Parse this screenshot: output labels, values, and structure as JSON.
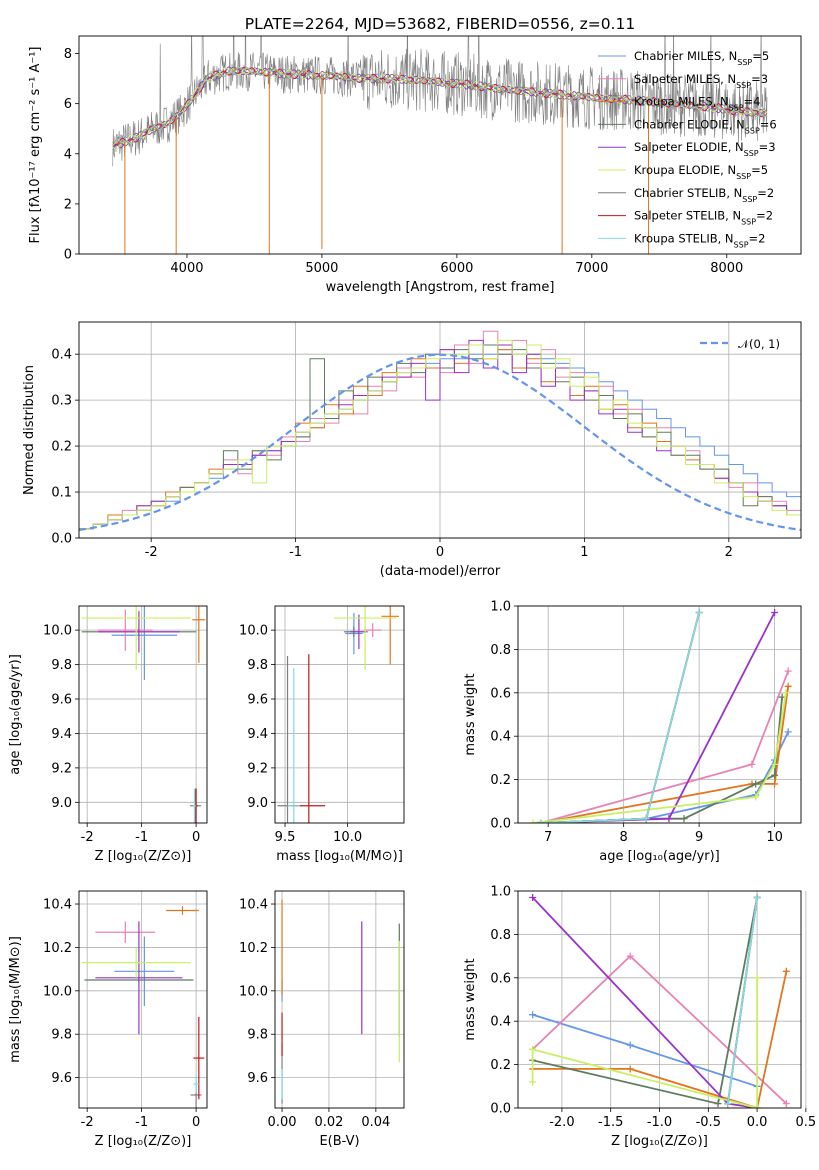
{
  "title": "PLATE=2264, MJD=53682, FIBERID=0556, z=0.11",
  "series_styles": [
    {
      "name": "Chabrier MILES",
      "n": "5",
      "color": "#6495ed"
    },
    {
      "name": "Salpeter MILES",
      "n": "3",
      "color": "#e882b4"
    },
    {
      "name": "Kroupa MILES",
      "n": "4",
      "color": "#e2751e"
    },
    {
      "name": "Chabrier ELODIE",
      "n": "6",
      "color": "#5d7c5d"
    },
    {
      "name": "Salpeter ELODIE",
      "n": "3",
      "color": "#9932cc"
    },
    {
      "name": "Kroupa ELODIE",
      "n": "5",
      "color": "#c8f060"
    },
    {
      "name": "Chabrier STELIB",
      "n": "2",
      "color": "#7f7f7f"
    },
    {
      "name": "Salpeter STELIB",
      "n": "2",
      "color": "#c21818"
    },
    {
      "name": "Kroupa STELIB",
      "n": "2",
      "color": "#80dce0"
    }
  ],
  "chart_data": [
    {
      "type": "line",
      "id": "spectrum",
      "title": "PLATE=2264, MJD=53682, FIBERID=0556, z=0.11",
      "xlabel": "wavelength [Angstrom, rest frame]",
      "ylabel": "Flux [fλ10⁻¹⁷ erg cm⁻² s⁻¹ A⁻¹]",
      "xlim": [
        3200,
        8550
      ],
      "ylim": [
        0,
        8.7
      ],
      "xticks": [
        4000,
        5000,
        6000,
        7000,
        8000
      ],
      "yticks": [
        0,
        2,
        4,
        6,
        8
      ],
      "legend": "upper-right",
      "grid": false,
      "continuum": {
        "x": [
          3450,
          3550,
          3650,
          3750,
          3850,
          3950,
          4050,
          4150,
          4300,
          4500,
          4700,
          4900,
          5100,
          5300,
          5500,
          5700,
          5900,
          6100,
          6300,
          6500,
          6700,
          6900,
          7100,
          7300,
          7500,
          7700,
          7900,
          8100,
          8300
        ],
        "y": [
          4.3,
          4.5,
          4.7,
          5.0,
          5.2,
          5.6,
          6.3,
          7.0,
          7.3,
          7.3,
          7.2,
          7.15,
          7.1,
          7.0,
          7.0,
          6.95,
          6.85,
          6.75,
          6.6,
          6.5,
          6.4,
          6.3,
          6.2,
          6.15,
          6.05,
          5.95,
          5.85,
          5.7,
          5.6
        ]
      },
      "observed_lines": [
        {
          "x": 3540,
          "y": 0
        },
        {
          "x": 3920,
          "y": 0
        },
        {
          "x": 4610,
          "y": 0
        },
        {
          "x": 5000,
          "y": 0.2
        },
        {
          "x": 6780,
          "y": 0
        },
        {
          "x": 7420,
          "y": 0
        }
      ]
    },
    {
      "type": "line",
      "id": "residual-histogram",
      "xlabel": "(data-model)/error",
      "ylabel": "Normed distribution",
      "xlim": [
        -2.5,
        2.5
      ],
      "ylim": [
        0,
        0.47
      ],
      "xticks": [
        -2,
        -1,
        0,
        1,
        2
      ],
      "yticks": [
        0.0,
        0.1,
        0.2,
        0.3,
        0.4
      ],
      "grid": true,
      "legend": "upper-right",
      "reference_label": "𝒩(0, 1)",
      "reference_color": "#6495ed",
      "bin_edges_start": -2.5,
      "bin_width": 0.1,
      "histograms": [
        [
          0.02,
          0.03,
          0.04,
          0.05,
          0.06,
          0.07,
          0.08,
          0.1,
          0.12,
          0.13,
          0.15,
          0.16,
          0.18,
          0.19,
          0.2,
          0.22,
          0.24,
          0.26,
          0.28,
          0.3,
          0.32,
          0.34,
          0.36,
          0.37,
          0.38,
          0.39,
          0.39,
          0.4,
          0.4,
          0.41,
          0.4,
          0.4,
          0.39,
          0.38,
          0.37,
          0.36,
          0.34,
          0.32,
          0.3,
          0.28,
          0.26,
          0.24,
          0.22,
          0.2,
          0.18,
          0.16,
          0.14,
          0.12,
          0.1,
          0.09
        ],
        [
          0.02,
          0.03,
          0.04,
          0.06,
          0.06,
          0.07,
          0.09,
          0.11,
          0.12,
          0.14,
          0.17,
          0.14,
          0.19,
          0.18,
          0.22,
          0.21,
          0.26,
          0.25,
          0.3,
          0.27,
          0.33,
          0.32,
          0.37,
          0.35,
          0.4,
          0.36,
          0.42,
          0.38,
          0.45,
          0.4,
          0.43,
          0.38,
          0.41,
          0.35,
          0.36,
          0.32,
          0.33,
          0.27,
          0.28,
          0.22,
          0.24,
          0.18,
          0.19,
          0.15,
          0.15,
          0.11,
          0.12,
          0.09,
          0.08,
          0.06
        ],
        [
          0.02,
          0.03,
          0.05,
          0.05,
          0.07,
          0.07,
          0.1,
          0.11,
          0.12,
          0.15,
          0.16,
          0.16,
          0.18,
          0.2,
          0.21,
          0.25,
          0.24,
          0.29,
          0.27,
          0.33,
          0.31,
          0.36,
          0.35,
          0.39,
          0.37,
          0.41,
          0.38,
          0.42,
          0.39,
          0.41,
          0.37,
          0.39,
          0.34,
          0.37,
          0.31,
          0.33,
          0.28,
          0.29,
          0.24,
          0.25,
          0.21,
          0.2,
          0.17,
          0.16,
          0.13,
          0.12,
          0.1,
          0.08,
          0.07,
          0.05
        ],
        [
          0.02,
          0.03,
          0.04,
          0.05,
          0.06,
          0.08,
          0.09,
          0.11,
          0.12,
          0.14,
          0.19,
          0.15,
          0.19,
          0.17,
          0.2,
          0.22,
          0.39,
          0.26,
          0.32,
          0.3,
          0.35,
          0.34,
          0.38,
          0.36,
          0.4,
          0.37,
          0.41,
          0.39,
          0.42,
          0.4,
          0.41,
          0.37,
          0.38,
          0.34,
          0.35,
          0.3,
          0.31,
          0.26,
          0.27,
          0.22,
          0.23,
          0.18,
          0.18,
          0.15,
          0.15,
          0.12,
          0.07,
          0.09,
          0.07,
          0.05
        ],
        [
          0.02,
          0.03,
          0.04,
          0.05,
          0.07,
          0.08,
          0.09,
          0.1,
          0.12,
          0.14,
          0.16,
          0.16,
          0.18,
          0.19,
          0.21,
          0.23,
          0.25,
          0.27,
          0.29,
          0.31,
          0.32,
          0.35,
          0.35,
          0.38,
          0.3,
          0.41,
          0.36,
          0.43,
          0.37,
          0.42,
          0.36,
          0.4,
          0.33,
          0.37,
          0.3,
          0.32,
          0.27,
          0.28,
          0.23,
          0.24,
          0.19,
          0.2,
          0.16,
          0.16,
          0.13,
          0.12,
          0.1,
          0.08,
          0.07,
          0.05
        ],
        [
          0.02,
          0.03,
          0.04,
          0.05,
          0.06,
          0.07,
          0.09,
          0.1,
          0.12,
          0.14,
          0.15,
          0.17,
          0.12,
          0.2,
          0.2,
          0.23,
          0.25,
          0.27,
          0.28,
          0.3,
          0.32,
          0.34,
          0.36,
          0.37,
          0.39,
          0.4,
          0.4,
          0.42,
          0.39,
          0.43,
          0.4,
          0.42,
          0.37,
          0.39,
          0.33,
          0.35,
          0.28,
          0.3,
          0.25,
          0.24,
          0.2,
          0.2,
          0.16,
          0.16,
          0.12,
          0.12,
          0.09,
          0.08,
          0.06,
          0.05
        ]
      ]
    },
    {
      "type": "scatter",
      "id": "age-vs-metallicity",
      "xlabel": "Z [log₁₀(Z/Z⊙)]",
      "ylabel": "age  [log₁₀(age/yr)]",
      "xlim": [
        -2.15,
        0.2
      ],
      "ylim": [
        8.88,
        10.14
      ],
      "xticks": [
        -2,
        -1,
        0
      ],
      "yticks": [
        9.0,
        9.2,
        9.4,
        9.6,
        9.8,
        10.0
      ],
      "grid": true,
      "points": [
        {
          "s": 0,
          "x": -0.95,
          "xerr": 0.6,
          "y": 9.97,
          "yerr": 0.26
        },
        {
          "s": 1,
          "x": -1.3,
          "xerr": 0.5,
          "y": 10.0,
          "yerr": 0.12
        },
        {
          "s": 2,
          "x": 0.05,
          "xerr": 0.12,
          "y": 10.06,
          "yerr": 0.25
        },
        {
          "s": 3,
          "x": -1.05,
          "xerr": 1.05,
          "y": 9.99,
          "yerr": 0.02
        },
        {
          "s": 4,
          "x": -1.05,
          "xerr": 0.75,
          "y": 9.99,
          "yerr": 0.12
        },
        {
          "s": 5,
          "x": -1.1,
          "xerr": 1.0,
          "y": 10.07,
          "yerr": 0.3
        },
        {
          "s": 6,
          "x": -0.01,
          "xerr": 0.1,
          "y": 8.98,
          "yerr": 0.1
        },
        {
          "s": 7,
          "x": 0.0,
          "xerr": 0.03,
          "y": 8.98,
          "yerr": 0.1
        },
        {
          "s": 8,
          "x": -0.03,
          "xerr": 0.03,
          "y": 8.98,
          "yerr": 0.1
        }
      ]
    },
    {
      "type": "scatter",
      "id": "age-vs-mass",
      "xlabel": "mass [log₁₀(M/M⊙)]",
      "ylabel": "",
      "xlim": [
        9.42,
        10.45
      ],
      "ylim": [
        8.88,
        10.14
      ],
      "xticks": [
        9.5,
        10.0
      ],
      "yticks": [
        9.0,
        9.2,
        9.4,
        9.6,
        9.8,
        10.0
      ],
      "grid": true,
      "points": [
        {
          "s": 0,
          "x": 10.05,
          "xerr": 0.07,
          "y": 9.98,
          "yerr": 0.12
        },
        {
          "s": 1,
          "x": 10.2,
          "xerr": 0.07,
          "y": 10.0,
          "yerr": 0.04
        },
        {
          "s": 2,
          "x": 10.34,
          "xerr": 0.07,
          "y": 10.08,
          "yerr": 0.28
        },
        {
          "s": 3,
          "x": 10.05,
          "xerr": 0.08,
          "y": 9.99,
          "yerr": 0.03
        },
        {
          "s": 4,
          "x": 10.09,
          "xerr": 0.07,
          "y": 9.99,
          "yerr": 0.1
        },
        {
          "s": 5,
          "x": 10.14,
          "xerr": 0.25,
          "y": 10.07,
          "yerr": 0.3
        },
        {
          "s": 6,
          "x": 9.52,
          "xerr": 0.08,
          "y": 8.98,
          "yerr": 0.87
        },
        {
          "s": 7,
          "x": 9.69,
          "xerr": 0.13,
          "y": 8.98,
          "yerr": 0.88
        },
        {
          "s": 8,
          "x": 9.57,
          "xerr": 0.05,
          "y": 8.98,
          "yerr": 0.8
        }
      ]
    },
    {
      "type": "line",
      "id": "mass-weight-vs-age",
      "xlabel": "age  [log₁₀(age/yr)]",
      "ylabel": "mass weight",
      "xlim": [
        6.6,
        10.35
      ],
      "ylim": [
        0,
        1.0
      ],
      "xticks": [
        7,
        8,
        9,
        10
      ],
      "yticks": [
        0.0,
        0.2,
        0.4,
        0.6,
        0.8,
        1.0
      ],
      "grid": true,
      "series": [
        {
          "s": 0,
          "x": [
            6.9,
            8.3,
            9.75,
            10.0,
            10.18
          ],
          "y": [
            0.0,
            0.02,
            0.13,
            0.29,
            0.42
          ]
        },
        {
          "s": 1,
          "x": [
            6.9,
            9.7,
            10.18
          ],
          "y": [
            0.0,
            0.27,
            0.7
          ]
        },
        {
          "s": 2,
          "x": [
            6.9,
            9.7,
            10.0,
            10.18
          ],
          "y": [
            0.0,
            0.18,
            0.18,
            0.63
          ]
        },
        {
          "s": 3,
          "x": [
            6.9,
            8.3,
            8.8,
            9.75,
            10.0,
            10.1
          ],
          "y": [
            0.0,
            0.02,
            0.02,
            0.18,
            0.22,
            0.58
          ]
        },
        {
          "s": 4,
          "x": [
            6.9,
            8.6,
            10.0
          ],
          "y": [
            0.0,
            0.02,
            0.97
          ]
        },
        {
          "s": 5,
          "x": [
            6.8,
            9.75,
            10.0,
            10.15
          ],
          "y": [
            0.0,
            0.12,
            0.27,
            0.6
          ]
        },
        {
          "s": 6,
          "x": [
            6.9,
            8.3,
            9.0
          ],
          "y": [
            0.0,
            0.02,
            0.97
          ]
        },
        {
          "s": 7,
          "x": [
            6.9,
            8.3,
            9.0
          ],
          "y": [
            0.0,
            0.02,
            0.97
          ]
        },
        {
          "s": 8,
          "x": [
            6.9,
            8.3,
            9.0
          ],
          "y": [
            0.0,
            0.02,
            0.97
          ]
        }
      ]
    },
    {
      "type": "scatter",
      "id": "mass-vs-metallicity",
      "xlabel": "Z [log₁₀(Z/Z⊙)]",
      "ylabel": "mass [log₁₀(M/M⊙)]",
      "xlim": [
        -2.15,
        0.2
      ],
      "ylim": [
        9.46,
        10.46
      ],
      "xticks": [
        -2,
        -1,
        0
      ],
      "yticks": [
        9.6,
        9.8,
        10.0,
        10.2,
        10.4
      ],
      "grid": true,
      "points": [
        {
          "s": 0,
          "x": -0.95,
          "xerr": 0.55,
          "y": 10.09,
          "yerr": 0.16
        },
        {
          "s": 1,
          "x": -1.3,
          "xerr": 0.55,
          "y": 10.27,
          "yerr": 0.05
        },
        {
          "s": 2,
          "x": -0.25,
          "xerr": 0.3,
          "y": 10.37,
          "yerr": 0.02
        },
        {
          "s": 3,
          "x": -1.05,
          "xerr": 1.0,
          "y": 10.05,
          "yerr": 0.01
        },
        {
          "s": 4,
          "x": -1.05,
          "xerr": 0.8,
          "y": 10.06,
          "yerr": 0.26
        },
        {
          "s": 5,
          "x": -1.1,
          "xerr": 1.0,
          "y": 10.13,
          "yerr": 0.07
        },
        {
          "s": 6,
          "x": 0.0,
          "xerr": 0.1,
          "y": 9.52,
          "yerr": 0.06
        },
        {
          "s": 7,
          "x": 0.05,
          "xerr": 0.1,
          "y": 9.69,
          "yerr": 0.19
        },
        {
          "s": 8,
          "x": 0.0,
          "xerr": 0.05,
          "y": 9.57,
          "yerr": 0.04
        }
      ]
    },
    {
      "type": "scatter",
      "id": "mass-vs-extinction",
      "xlabel": "E(B-V)",
      "ylabel": "",
      "xlim": [
        -0.003,
        0.052
      ],
      "ylim": [
        9.46,
        10.46
      ],
      "xticks": [
        0.0,
        0.02,
        0.04
      ],
      "yticks": [
        9.6,
        9.8,
        10.0,
        10.2,
        10.4
      ],
      "grid": true,
      "points": [
        {
          "s": 0,
          "x": 0.0,
          "y": 10.0,
          "yerr": 0.05
        },
        {
          "s": 2,
          "x": 0.0,
          "y": 10.2,
          "yerr": 0.22
        },
        {
          "s": 3,
          "x": 0.05,
          "y": 10.05,
          "yerr": 0.26
        },
        {
          "s": 4,
          "x": 0.034,
          "y": 10.06,
          "yerr": 0.26
        },
        {
          "s": 5,
          "x": 0.05,
          "y": 9.95,
          "yerr": 0.28
        },
        {
          "s": 6,
          "x": 0.0,
          "y": 9.62,
          "yerr": 0.14
        },
        {
          "s": 7,
          "x": 0.0,
          "y": 9.8,
          "yerr": 0.1
        },
        {
          "s": 8,
          "x": 0.0,
          "y": 9.57,
          "yerr": 0.07
        }
      ]
    },
    {
      "type": "line",
      "id": "mass-weight-vs-metallicity",
      "xlabel": "Z [log₁₀(Z/Z⊙)]",
      "ylabel": "mass weight",
      "xlim": [
        -2.45,
        0.45
      ],
      "ylim": [
        0,
        1.0
      ],
      "xticks": [
        -2.0,
        -1.5,
        -1.0,
        -0.5,
        0.0,
        0.5
      ],
      "yticks": [
        0.0,
        0.2,
        0.4,
        0.6,
        0.8,
        1.0
      ],
      "grid": true,
      "series": [
        {
          "s": 0,
          "x": [
            -2.3,
            -1.3,
            0.0
          ],
          "y": [
            0.43,
            0.29,
            0.1
          ]
        },
        {
          "s": 1,
          "x": [
            -2.3,
            -1.3,
            0.3
          ],
          "y": [
            0.27,
            0.7,
            0.02
          ]
        },
        {
          "s": 2,
          "x": [
            -2.3,
            -1.3,
            0.0,
            0.3
          ],
          "y": [
            0.18,
            0.18,
            0.0,
            0.63
          ]
        },
        {
          "s": 3,
          "x": [
            -2.3,
            -0.4,
            0.0
          ],
          "y": [
            0.22,
            0.02,
            0.97
          ]
        },
        {
          "s": 4,
          "x": [
            -2.3,
            -0.3,
            0.0
          ],
          "y": [
            0.97,
            0.02,
            0.0
          ]
        },
        {
          "s": 5,
          "x": [
            -2.3,
            -2.3,
            0.0,
            0.0
          ],
          "y": [
            0.12,
            0.27,
            0.0,
            0.6
          ]
        },
        {
          "s": 6,
          "x": [
            -0.3,
            0.0
          ],
          "y": [
            0.02,
            0.97
          ]
        },
        {
          "s": 7,
          "x": [
            -0.3,
            0.0
          ],
          "y": [
            0.02,
            0.97
          ]
        },
        {
          "s": 8,
          "x": [
            -0.3,
            0.0
          ],
          "y": [
            0.02,
            0.97
          ]
        }
      ]
    }
  ]
}
